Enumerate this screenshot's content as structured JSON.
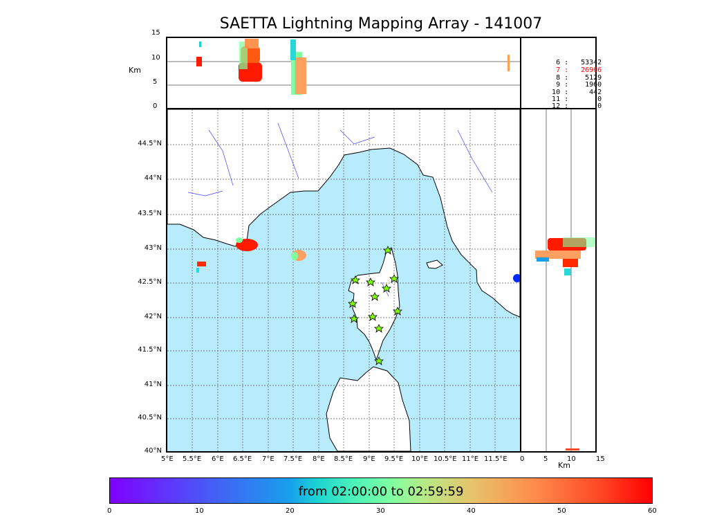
{
  "title": "SAETTA Lightning Mapping Array - 141007",
  "altitude_panel": {
    "ylabel": "Km",
    "yticks": [
      "15",
      "10",
      "5",
      "0"
    ]
  },
  "side_panel": {
    "xlabel": "Km",
    "xticks": [
      "0",
      "5",
      "10",
      "15"
    ]
  },
  "map": {
    "lat_ticks": [
      "44.5°N",
      "44°N",
      "43.5°N",
      "43°N",
      "42.5°N",
      "42°N",
      "41.5°N",
      "41°N",
      "40.5°N",
      "40°N"
    ],
    "lon_ticks": [
      "5°E",
      "5.5°E",
      "6°E",
      "6.5°E",
      "7°E",
      "7.5°E",
      "8°E",
      "8.5°E",
      "9°E",
      "9.5°E",
      "10°E",
      "10.5°E",
      "11°E",
      "11.5°E"
    ],
    "sea_color": "#b8ecfc",
    "station_icon": "star-icon",
    "station_color": "#80ff00"
  },
  "station_counts": [
    {
      "stations": "6",
      "count": "53342",
      "color": "#000000"
    },
    {
      "stations": "7",
      "count": "26906",
      "color": "#ff0000"
    },
    {
      "stations": "8",
      "count": "5129",
      "color": "#000000"
    },
    {
      "stations": "9",
      "count": "1960",
      "color": "#000000"
    },
    {
      "stations": "10",
      "count": "442",
      "color": "#000000"
    },
    {
      "stations": "11",
      "count": "0",
      "color": "#000000"
    },
    {
      "stations": "12",
      "count": "0",
      "color": "#000000"
    }
  ],
  "colorbar": {
    "label": "from 02:00:00 to 02:59:59",
    "ticks": [
      "0",
      "10",
      "20",
      "30",
      "40",
      "50",
      "60"
    ],
    "colormap": "rainbow"
  }
}
